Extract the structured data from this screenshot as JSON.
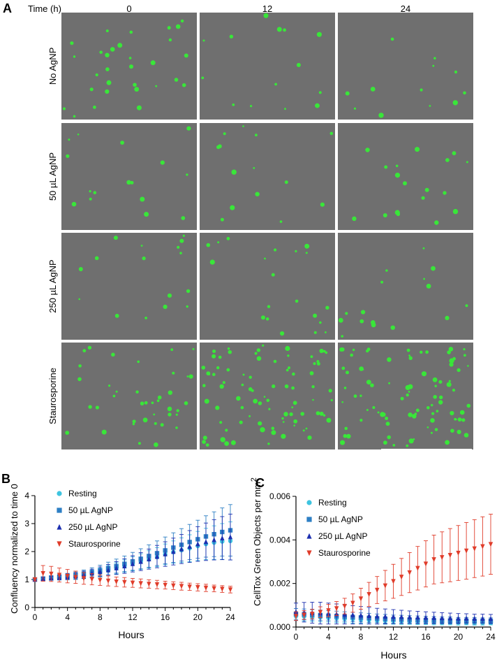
{
  "panel_a": {
    "label": "A",
    "time_header": "Time (h)",
    "times": [
      "0",
      "12",
      "24"
    ],
    "conditions": [
      "No AgNP",
      "50 µL AgNP",
      "250 µL AgNP",
      "Staurosporine"
    ],
    "image_background": "#6f6f6f",
    "cell_color": "#39e639",
    "cell_counts": [
      [
        30,
        14,
        12
      ],
      [
        16,
        14,
        18
      ],
      [
        16,
        20,
        16
      ],
      [
        40,
        85,
        90
      ]
    ]
  },
  "chart_data": [
    {
      "type": "scatter",
      "panel_label": "B",
      "xlabel": "Hours",
      "ylabel": "Confluency normalized to time 0",
      "xlim": [
        0,
        24
      ],
      "ylim": [
        0,
        4
      ],
      "xticks": [
        "0",
        "4",
        "8",
        "12",
        "16",
        "20",
        "24"
      ],
      "yticks": [
        "0",
        "1",
        "2",
        "3",
        "4"
      ],
      "legend_position": "top-left",
      "error_bars": true,
      "x": [
        0,
        1,
        2,
        3,
        4,
        5,
        6,
        7,
        8,
        9,
        10,
        11,
        12,
        13,
        14,
        15,
        16,
        17,
        18,
        19,
        20,
        21,
        22,
        23,
        24
      ],
      "series": [
        {
          "name": "Resting",
          "color": "#3ec4e0",
          "marker": "circle",
          "values": [
            1.0,
            1.02,
            1.04,
            1.06,
            1.08,
            1.1,
            1.15,
            1.2,
            1.25,
            1.32,
            1.4,
            1.48,
            1.56,
            1.64,
            1.72,
            1.8,
            1.9,
            1.98,
            2.05,
            2.12,
            2.2,
            2.27,
            2.32,
            2.36,
            2.38
          ],
          "errors": [
            0.05,
            0.06,
            0.07,
            0.08,
            0.09,
            0.1,
            0.12,
            0.14,
            0.16,
            0.18,
            0.2,
            0.22,
            0.25,
            0.28,
            0.31,
            0.34,
            0.37,
            0.4,
            0.44,
            0.48,
            0.52,
            0.56,
            0.6,
            0.64,
            0.68
          ]
        },
        {
          "name": "50 µL AgNP",
          "color": "#2d7fc4",
          "marker": "square",
          "values": [
            1.0,
            1.03,
            1.06,
            1.09,
            1.12,
            1.15,
            1.2,
            1.26,
            1.32,
            1.4,
            1.48,
            1.56,
            1.65,
            1.74,
            1.84,
            1.94,
            2.04,
            2.14,
            2.24,
            2.34,
            2.44,
            2.54,
            2.62,
            2.7,
            2.76
          ],
          "errors": [
            0.06,
            0.07,
            0.08,
            0.09,
            0.1,
            0.12,
            0.14,
            0.16,
            0.19,
            0.22,
            0.25,
            0.28,
            0.32,
            0.36,
            0.4,
            0.44,
            0.48,
            0.53,
            0.58,
            0.63,
            0.68,
            0.74,
            0.8,
            0.86,
            0.92
          ]
        },
        {
          "name": "250 µL AgNP",
          "color": "#1c2fb0",
          "marker": "triangle-up",
          "values": [
            1.0,
            1.02,
            1.05,
            1.07,
            1.1,
            1.13,
            1.17,
            1.22,
            1.28,
            1.34,
            1.41,
            1.48,
            1.56,
            1.64,
            1.73,
            1.82,
            1.91,
            2.0,
            2.09,
            2.18,
            2.27,
            2.35,
            2.42,
            2.48,
            2.52
          ],
          "errors": [
            0.05,
            0.06,
            0.07,
            0.08,
            0.1,
            0.11,
            0.13,
            0.15,
            0.17,
            0.2,
            0.23,
            0.26,
            0.29,
            0.32,
            0.36,
            0.4,
            0.44,
            0.48,
            0.52,
            0.57,
            0.62,
            0.67,
            0.72,
            0.77,
            0.82
          ]
        },
        {
          "name": "Staurosporine",
          "color": "#e03c2a",
          "marker": "triangle-down",
          "values": [
            1.0,
            1.22,
            1.2,
            1.16,
            1.12,
            1.08,
            1.04,
            1.01,
            0.98,
            0.95,
            0.92,
            0.9,
            0.88,
            0.86,
            0.84,
            0.82,
            0.8,
            0.78,
            0.76,
            0.74,
            0.72,
            0.7,
            0.68,
            0.66,
            0.64
          ],
          "errors": [
            0.05,
            0.28,
            0.27,
            0.25,
            0.24,
            0.22,
            0.21,
            0.2,
            0.19,
            0.18,
            0.17,
            0.17,
            0.16,
            0.16,
            0.15,
            0.15,
            0.14,
            0.14,
            0.14,
            0.13,
            0.13,
            0.13,
            0.12,
            0.12,
            0.12
          ]
        }
      ]
    },
    {
      "type": "scatter",
      "panel_label": "C",
      "xlabel": "Hours",
      "ylabel": "CellTox Green Objects per mm",
      "ylabel_superscript": "2",
      "xlim": [
        0,
        24
      ],
      "ylim": [
        0,
        0.006
      ],
      "xticks": [
        "0",
        "4",
        "8",
        "12",
        "16",
        "20",
        "24"
      ],
      "yticks": [
        "0.000",
        "0.002",
        "0.004",
        "0.006"
      ],
      "legend_position": "top-left",
      "error_bars": true,
      "x": [
        0,
        1,
        2,
        3,
        4,
        5,
        6,
        7,
        8,
        9,
        10,
        11,
        12,
        13,
        14,
        15,
        16,
        17,
        18,
        19,
        20,
        21,
        22,
        23,
        24
      ],
      "series": [
        {
          "name": "Resting",
          "color": "#3ec4e0",
          "marker": "circle",
          "values": [
            0.0005,
            0.00048,
            0.00046,
            0.00044,
            0.00042,
            0.0004,
            0.00038,
            0.00036,
            0.00034,
            0.00032,
            0.0003,
            0.00029,
            0.00028,
            0.00027,
            0.00026,
            0.00025,
            0.00024,
            0.00023,
            0.00022,
            0.00022,
            0.00021,
            0.00021,
            0.0002,
            0.0002,
            0.0002
          ],
          "errors": [
            0.0002,
            0.0002,
            0.0002,
            0.0002,
            0.00019,
            0.00019,
            0.00018,
            0.00018,
            0.00017,
            0.00017,
            0.00016,
            0.00016,
            0.00015,
            0.00015,
            0.00014,
            0.00014,
            0.00013,
            0.00013,
            0.00012,
            0.00012,
            0.00012,
            0.00011,
            0.00011,
            0.00011,
            0.0001
          ]
        },
        {
          "name": "50 µL AgNP",
          "color": "#2d7fc4",
          "marker": "square",
          "values": [
            0.0006,
            0.00058,
            0.00056,
            0.00054,
            0.00052,
            0.0005,
            0.00048,
            0.00046,
            0.00044,
            0.00042,
            0.0004,
            0.00038,
            0.00036,
            0.00035,
            0.00034,
            0.00033,
            0.00032,
            0.00031,
            0.0003,
            0.0003,
            0.00029,
            0.00029,
            0.00028,
            0.00028,
            0.00028
          ],
          "errors": [
            0.00025,
            0.00025,
            0.00024,
            0.00024,
            0.00023,
            0.00023,
            0.00022,
            0.00022,
            0.00021,
            0.00021,
            0.0002,
            0.0002,
            0.00019,
            0.00019,
            0.00018,
            0.00018,
            0.00017,
            0.00017,
            0.00016,
            0.00016,
            0.00015,
            0.00015,
            0.00015,
            0.00014,
            0.00014
          ]
        },
        {
          "name": "250 µL AgNP",
          "color": "#1c2fb0",
          "marker": "triangle-up",
          "values": [
            0.0007,
            0.00068,
            0.00066,
            0.00064,
            0.00062,
            0.0006,
            0.00058,
            0.00056,
            0.00054,
            0.00052,
            0.0005,
            0.00049,
            0.00048,
            0.00047,
            0.00046,
            0.00045,
            0.00044,
            0.00043,
            0.00042,
            0.00041,
            0.0004,
            0.0004,
            0.00039,
            0.00039,
            0.00038
          ],
          "errors": [
            0.0004,
            0.00045,
            0.00048,
            0.0005,
            0.00048,
            0.00046,
            0.00044,
            0.00042,
            0.0004,
            0.00038,
            0.00036,
            0.00034,
            0.00032,
            0.0003,
            0.00028,
            0.00027,
            0.00026,
            0.00025,
            0.00024,
            0.00023,
            0.00022,
            0.00021,
            0.0002,
            0.0002,
            0.0002
          ]
        },
        {
          "name": "Staurosporine",
          "color": "#e03c2a",
          "marker": "triangle-down",
          "values": [
            0.0005,
            0.00055,
            0.0006,
            0.00068,
            0.00076,
            0.00085,
            0.00096,
            0.0011,
            0.0013,
            0.0015,
            0.0017,
            0.0019,
            0.0021,
            0.0023,
            0.0025,
            0.0027,
            0.0029,
            0.0031,
            0.0032,
            0.0033,
            0.0034,
            0.0035,
            0.0036,
            0.0037,
            0.0038
          ],
          "errors": [
            0.0002,
            0.0002,
            0.00022,
            0.00025,
            0.00028,
            0.00032,
            0.00036,
            0.00042,
            0.00048,
            0.00055,
            0.00062,
            0.0007,
            0.00078,
            0.00085,
            0.00092,
            0.001,
            0.00106,
            0.00112,
            0.00117,
            0.00122,
            0.00126,
            0.0013,
            0.00133,
            0.00136,
            0.00138
          ]
        }
      ]
    }
  ]
}
